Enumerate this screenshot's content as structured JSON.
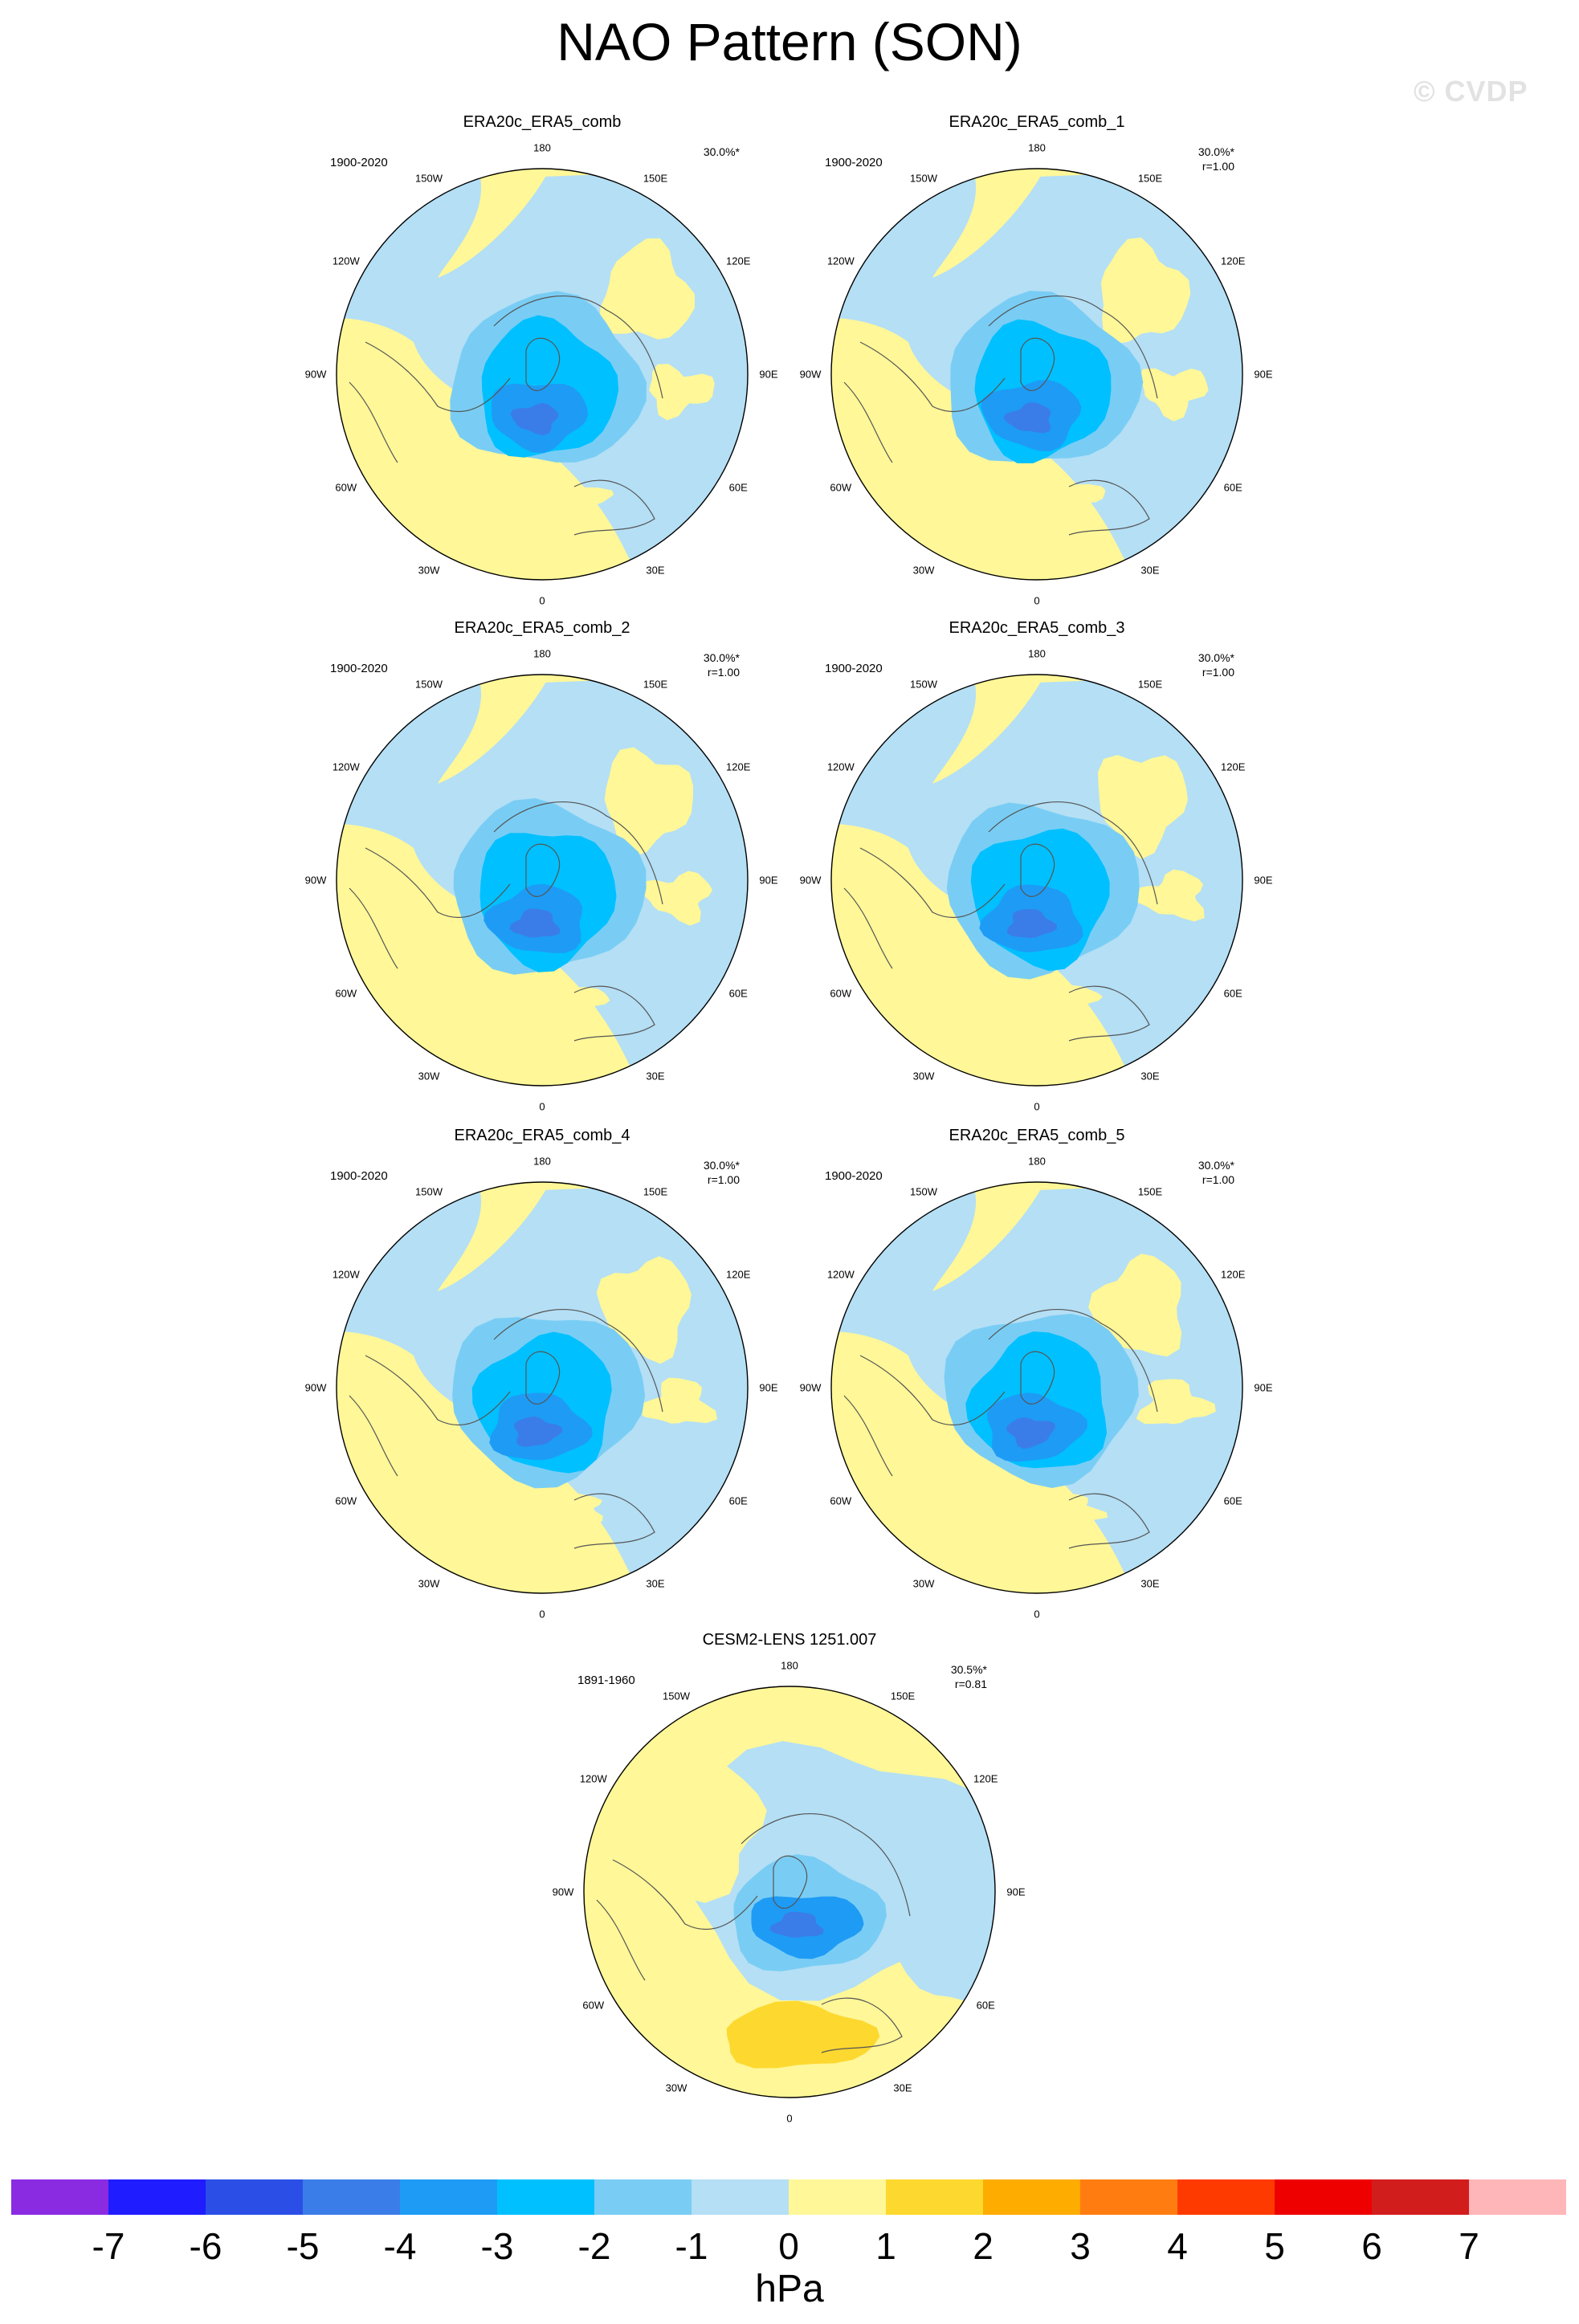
{
  "title": "NAO Pattern (SON)",
  "watermark": "© CVDP",
  "lon_labels": [
    "180",
    "150E",
    "120E",
    "90E",
    "60E",
    "30E",
    "0",
    "30W",
    "60W",
    "90W",
    "120W",
    "150W"
  ],
  "panels": [
    {
      "title": "ERA20c_ERA5_comb",
      "years": "1900-2020",
      "pct": "30.0%*",
      "r": ""
    },
    {
      "title": "ERA20c_ERA5_comb_1",
      "years": "1900-2020",
      "pct": "30.0%*",
      "r": "r=1.00"
    },
    {
      "title": "ERA20c_ERA5_comb_2",
      "years": "1900-2020",
      "pct": "30.0%*",
      "r": "r=1.00"
    },
    {
      "title": "ERA20c_ERA5_comb_3",
      "years": "1900-2020",
      "pct": "30.0%*",
      "r": "r=1.00"
    },
    {
      "title": "ERA20c_ERA5_comb_4",
      "years": "1900-2020",
      "pct": "30.0%*",
      "r": "r=1.00"
    },
    {
      "title": "ERA20c_ERA5_comb_5",
      "years": "1900-2020",
      "pct": "30.0%*",
      "r": "r=1.00"
    },
    {
      "title": "CESM2-LENS 1251.007",
      "years": "1891-1960",
      "pct": "30.5%*",
      "r": "r=0.81"
    }
  ],
  "colorbar": {
    "units": "hPa",
    "tick_labels": [
      "-7",
      "-6",
      "-5",
      "-4",
      "-3",
      "-2",
      "-1",
      "0",
      "1",
      "2",
      "3",
      "4",
      "5",
      "6",
      "7"
    ],
    "colors": [
      "#8a2be2",
      "#1f1cff",
      "#2b4fe6",
      "#3a7de8",
      "#1e9bf5",
      "#00c0ff",
      "#79cdf4",
      "#b4dff5",
      "#fff798",
      "#fdd82f",
      "#ffac00",
      "#ff7d10",
      "#ff3a00",
      "#ee0000",
      "#d21d1d",
      "#ffb6b9"
    ]
  },
  "colors": {
    "neg1": "#b4dff5",
    "neg2": "#79cdf4",
    "neg3": "#00c0ff",
    "neg4": "#1e9bf5",
    "neg5": "#3a7de8",
    "pos1": "#fff798",
    "pos2": "#fdd82f",
    "coast": "#555555"
  }
}
